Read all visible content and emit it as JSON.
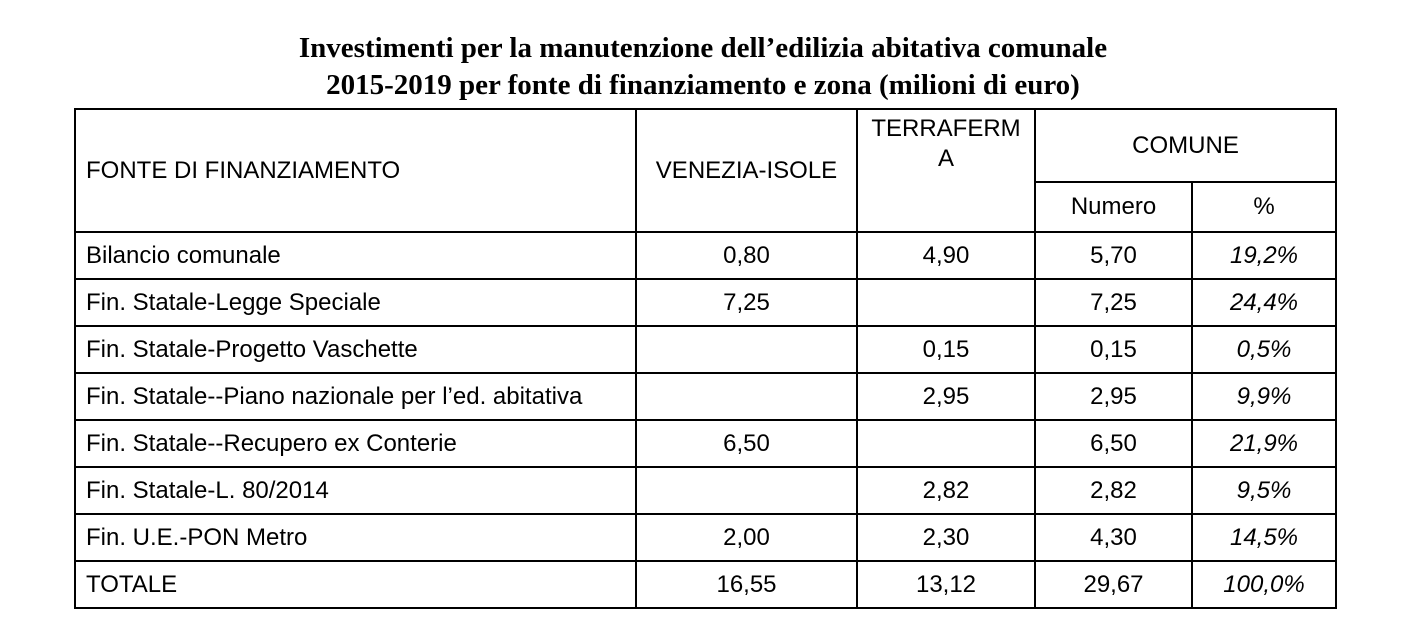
{
  "title": {
    "line1": "Investimenti per la manutenzione dell’edilizia abitativa comunale",
    "line2": "2015-2019 per fonte di finanziamento e zona (milioni di euro)"
  },
  "table": {
    "headers": {
      "fonte": "FONTE DI FINANZIAMENTO",
      "venezia": "VENEZIA-ISOLE",
      "terraferma_line1": "TERRAFERM",
      "terraferma_line2": "A",
      "comune": "COMUNE",
      "numero": "Numero",
      "percent": "%"
    },
    "rows": [
      {
        "fonte": "Bilancio comunale",
        "venezia": "0,80",
        "terraferma": "4,90",
        "numero": "5,70",
        "percent": "19,2%"
      },
      {
        "fonte": "Fin. Statale-Legge Speciale",
        "venezia": "7,25",
        "terraferma": "",
        "numero": "7,25",
        "percent": "24,4%"
      },
      {
        "fonte": "Fin. Statale-Progetto Vaschette",
        "venezia": "",
        "terraferma": "0,15",
        "numero": "0,15",
        "percent": "0,5%"
      },
      {
        "fonte": "Fin. Statale--Piano nazionale per l’ed. abitativa",
        "venezia": "",
        "terraferma": "2,95",
        "numero": "2,95",
        "percent": "9,9%"
      },
      {
        "fonte": "Fin. Statale--Recupero ex Conterie",
        "venezia": "6,50",
        "terraferma": "",
        "numero": "6,50",
        "percent": "21,9%"
      },
      {
        "fonte": "Fin. Statale-L. 80/2014",
        "venezia": "",
        "terraferma": "2,82",
        "numero": "2,82",
        "percent": "9,5%"
      },
      {
        "fonte": "Fin. U.E.-PON Metro",
        "venezia": "2,00",
        "terraferma": "2,30",
        "numero": "4,30",
        "percent": "14,5%"
      },
      {
        "fonte": "TOTALE",
        "venezia": "16,55",
        "terraferma": "13,12",
        "numero": "29,67",
        "percent": "100,0%"
      }
    ]
  }
}
